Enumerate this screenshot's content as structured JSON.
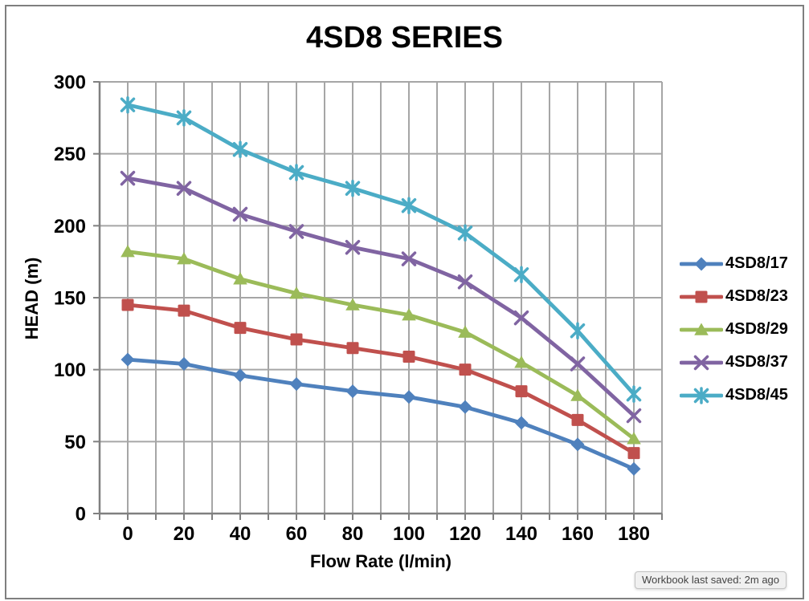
{
  "window": {
    "tooltip": "Workbook last saved: 2m ago"
  },
  "chart_data": {
    "type": "line",
    "title": "4SD8 SERIES",
    "xlabel": "Flow Rate (l/min)",
    "ylabel": "HEAD (m)",
    "x": [
      0,
      20,
      40,
      60,
      80,
      100,
      120,
      140,
      160,
      180
    ],
    "series": [
      {
        "name": "4SD8/17",
        "color": "#4F81BD",
        "marker": "diamond",
        "values": [
          107,
          104,
          96,
          90,
          85,
          81,
          74,
          63,
          48,
          31
        ]
      },
      {
        "name": "4SD8/23",
        "color": "#C0504D",
        "marker": "square",
        "values": [
          145,
          141,
          129,
          121,
          115,
          109,
          100,
          85,
          65,
          42
        ]
      },
      {
        "name": "4SD8/29",
        "color": "#9BBB59",
        "marker": "triangle",
        "values": [
          182,
          177,
          163,
          153,
          145,
          138,
          126,
          105,
          82,
          52
        ]
      },
      {
        "name": "4SD8/37",
        "color": "#8064A2",
        "marker": "x",
        "values": [
          233,
          226,
          208,
          196,
          185,
          177,
          161,
          136,
          104,
          68
        ]
      },
      {
        "name": "4SD8/45",
        "color": "#4BACC6",
        "marker": "star",
        "values": [
          284,
          275,
          253,
          237,
          226,
          214,
          195,
          166,
          127,
          83
        ]
      }
    ],
    "ylim": [
      0,
      300
    ],
    "yticks": [
      0,
      50,
      100,
      150,
      200,
      250,
      300
    ],
    "xticks": [
      0,
      20,
      40,
      60,
      80,
      100,
      120,
      140,
      160,
      180
    ],
    "x_minor_gridline_step": 10,
    "grid": "both",
    "legend_position": "right",
    "gridline_color": "#A6A6A6",
    "axis_color": "#808080"
  }
}
